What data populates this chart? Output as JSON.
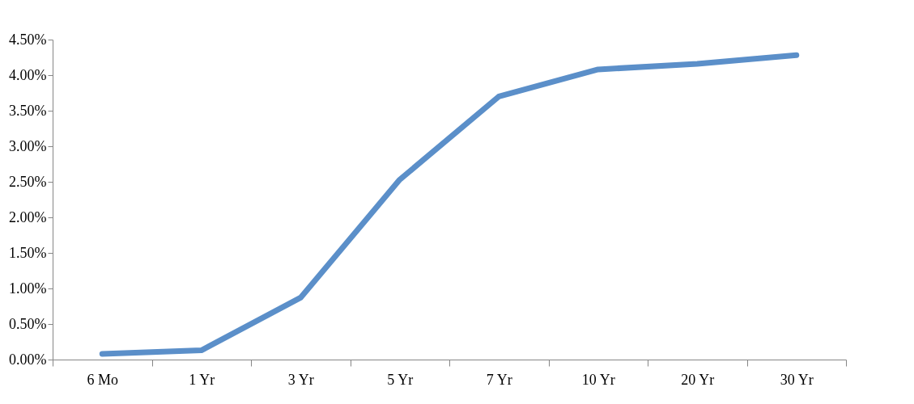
{
  "chart_data": {
    "type": "line",
    "categories": [
      "6 Mo",
      "1 Yr",
      "3 Yr",
      "5 Yr",
      "7 Yr",
      "10 Yr",
      "20 Yr",
      "30 Yr"
    ],
    "series": [
      {
        "color": "#5b8fc9",
        "values": [
          0.08,
          0.13,
          0.87,
          2.53,
          3.7,
          4.08,
          4.16,
          4.28
        ]
      }
    ],
    "ylim": [
      0,
      4.5
    ],
    "yticks": [
      {
        "value": 0,
        "label": "0.00%"
      },
      {
        "value": 0.5,
        "label": "0.50%"
      },
      {
        "value": 1,
        "label": "1.00%"
      },
      {
        "value": 1.5,
        "label": "1.50%"
      },
      {
        "value": 2,
        "label": "2.00%"
      },
      {
        "value": 2.5,
        "label": "2.50%"
      },
      {
        "value": 3,
        "label": "3.00%"
      },
      {
        "value": 3.5,
        "label": "3.50%"
      },
      {
        "value": 4,
        "label": "4.00%"
      },
      {
        "value": 4.5,
        "label": "4.50%"
      }
    ],
    "grid": false,
    "legend": false,
    "line_style": "solid"
  }
}
